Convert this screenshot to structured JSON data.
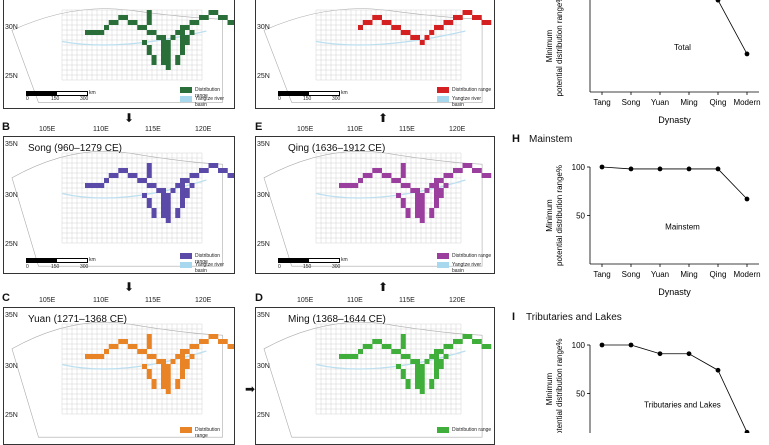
{
  "colors": {
    "tang": "#2a6e3a",
    "qing_top": "#d42020",
    "song": "#5b4aa8",
    "qing": "#9b3f9e",
    "yuan": "#e88326",
    "ming": "#3fae3a",
    "basin": "#a8d8ee"
  },
  "maps": {
    "top_left": {
      "lat": [
        "30N",
        "25N"
      ],
      "legend": [
        "Distribution range",
        "Yangtze river basin"
      ],
      "scale_km": "km",
      "scale_ticks": [
        "0",
        "150",
        "300"
      ]
    },
    "top_right": {
      "lat": [
        "30N",
        "25N"
      ],
      "legend": [
        "Distribution range",
        "Yangtze river basin"
      ],
      "scale_km": "km",
      "scale_ticks": [
        "0",
        "150",
        "300"
      ]
    },
    "B": {
      "letter": "B",
      "title": "Song (960–1279 CE)",
      "lon": [
        "105E",
        "110E",
        "115E",
        "120E"
      ],
      "lat": [
        "35N",
        "30N",
        "25N"
      ],
      "legend": [
        "Distribution range",
        "Yangtze river basin"
      ],
      "scale_km": "km",
      "scale_ticks": [
        "0",
        "150",
        "300"
      ]
    },
    "E": {
      "letter": "E",
      "title": "Qing (1636–1912 CE)",
      "lon": [
        "105E",
        "110E",
        "115E",
        "120E"
      ],
      "lat": [
        "35N",
        "30N",
        "25N"
      ],
      "legend": [
        "Distribution range",
        "Yangtze river basin"
      ],
      "scale_km": "km",
      "scale_ticks": [
        "0",
        "150",
        "300"
      ]
    },
    "C": {
      "letter": "C",
      "title": "Yuan (1271–1368 CE)",
      "lon": [
        "105E",
        "110E",
        "115E",
        "120E"
      ],
      "lat": [
        "35N",
        "30N",
        "25N"
      ],
      "legend": [
        "Distribution range"
      ]
    },
    "D": {
      "letter": "D",
      "title": "Ming (1368–1644 CE)",
      "lon": [
        "105E",
        "110E",
        "115E",
        "120E"
      ],
      "lat": [
        "35N",
        "30N",
        "25N"
      ],
      "legend": [
        "Distribution range"
      ]
    }
  },
  "chart_data": [
    {
      "type": "line",
      "panel": "G",
      "title": "",
      "annotation": "Total",
      "categories": [
        "Tang",
        "Song",
        "Yuan",
        "Ming",
        "Qing",
        "Modern"
      ],
      "values": [
        100,
        99,
        94,
        93,
        82,
        34
      ],
      "xlabel": "Dynasty",
      "ylabel": "Minimum potential distribution range%",
      "yticks": [],
      "ylim": [
        0,
        100
      ]
    },
    {
      "type": "line",
      "panel": "H",
      "title": "Mainstem",
      "annotation": "Mainstem",
      "categories": [
        "Tang",
        "Song",
        "Yuan",
        "Ming",
        "Qing",
        "Modern"
      ],
      "values": [
        100,
        98,
        98,
        98,
        98,
        67
      ],
      "xlabel": "Dynasty",
      "ylabel": "Minimum potential distribution range%",
      "yticks": [
        "100",
        "50"
      ],
      "ylim": [
        0,
        100
      ]
    },
    {
      "type": "line",
      "panel": "I",
      "title": "Tributaries and Lakes",
      "annotation": "Tributaries and Lakes",
      "categories": [
        "Tang",
        "Song",
        "Yuan",
        "Ming",
        "Qing",
        "Modern"
      ],
      "values": [
        100,
        100,
        91,
        91,
        74,
        10
      ],
      "xlabel": "",
      "ylabel": "Minimum potential distribution range%",
      "yticks": [
        "100",
        "50"
      ],
      "ylim": [
        0,
        100
      ]
    }
  ],
  "panel_letters": {
    "H": "H",
    "I": "I"
  }
}
